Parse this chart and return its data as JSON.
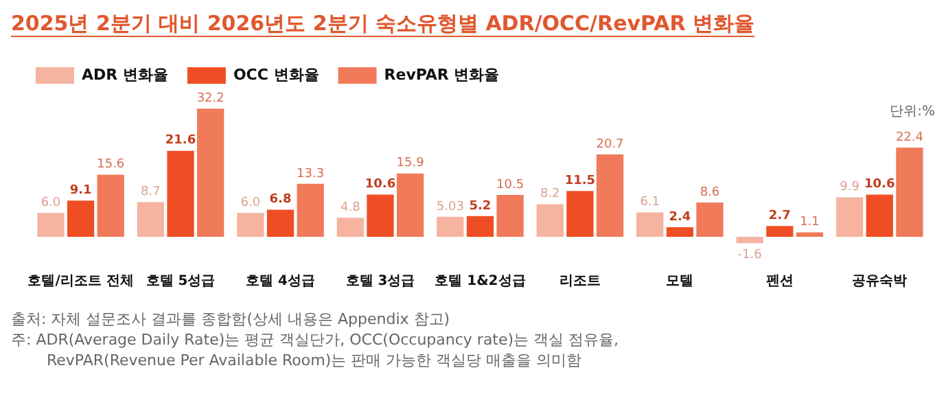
{
  "chart_data": {
    "type": "bar",
    "title": "2025년 2분기 대비 2026년도 2분기 숙소유형별 ADR/OCC/RevPAR 변화율",
    "categories": [
      "호텔/리조트 전체",
      "호텔 5성급",
      "호텔 4성급",
      "호텔 3성급",
      "호텔 1&2성급",
      "리조트",
      "모텔",
      "펜션",
      "공유숙박"
    ],
    "series": [
      {
        "name": "ADR 변화율",
        "color": "#f5b3a0",
        "values": [
          6.0,
          8.7,
          6.0,
          4.8,
          5.03,
          8.2,
          6.1,
          -1.6,
          9.9
        ],
        "value_labels": [
          "6.0",
          "8.7",
          "6.0",
          "4.8",
          "5.03",
          "8.2",
          "6.1",
          "-1.6",
          "9.9"
        ]
      },
      {
        "name": "OCC 변화율",
        "color": "#ef4e24",
        "values": [
          9.1,
          21.6,
          6.8,
          10.6,
          5.2,
          11.5,
          2.4,
          2.7,
          10.6
        ],
        "value_labels": [
          "9.1",
          "21.6",
          "6.8",
          "10.6",
          "5.2",
          "11.5",
          "2.4",
          "2.7",
          "10.6"
        ]
      },
      {
        "name": "RevPAR 변화율",
        "color": "#f07a5a",
        "values": [
          15.6,
          32.2,
          13.3,
          15.9,
          10.5,
          20.7,
          8.6,
          1.1,
          22.4
        ],
        "value_labels": [
          "15.6",
          "32.2",
          "13.3",
          "15.9",
          "10.5",
          "20.7",
          "8.6",
          "1.1",
          "22.4"
        ]
      }
    ],
    "legend": "top left",
    "grid": false,
    "annotations": [
      "단위:%",
      "출처: 자체 설문조사 결과를 종합함(상세 내용은 Appendix 참고)",
      "주: ADR(Average Daily Rate)는 평균 객실단가, OCC(Occupancy rate)는 객실 점유율,",
      "RevPAR(Revenue Per Available Room)는 판매 가능한 객실당 매출을 의미함"
    ]
  }
}
